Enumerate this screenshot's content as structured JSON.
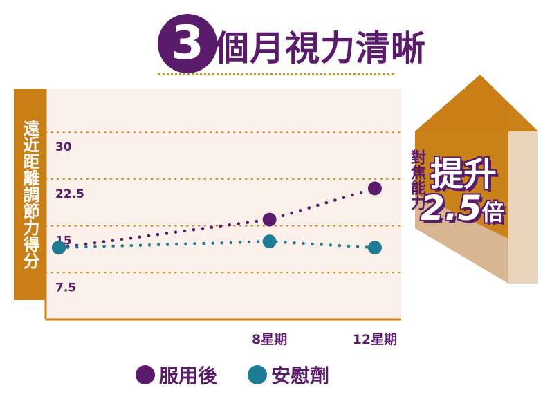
{
  "title": {
    "number": "3",
    "text": "個月視力清晰"
  },
  "colors": {
    "purple": "#5a1b6b",
    "teal": "#1f7c95",
    "orange": "#c97f15",
    "plot_background": "#fbf1ea",
    "gridline": "#c98a1a"
  },
  "callout": {
    "side_label": "對焦能力",
    "boost_word": "提升",
    "boost_number": "2.5",
    "boost_unit": "倍",
    "icon": "up-arrow-icon"
  },
  "legend": [
    {
      "label": "服用後",
      "color": "#5a1b6b"
    },
    {
      "label": "安慰劑",
      "color": "#1f7c95"
    }
  ],
  "chart_data": {
    "type": "line",
    "title": "3個月視力清晰",
    "ylabel": "遠近距離調節力得分",
    "xlabel": "",
    "x_positions": [
      0,
      8,
      12
    ],
    "categories": [
      "",
      "8星期",
      "12星期"
    ],
    "xlim": [
      -0.5,
      13
    ],
    "yticks": [
      7.5,
      15,
      22.5,
      30
    ],
    "ytick_labels": [
      "7.5",
      "15",
      "22.5",
      "30"
    ],
    "ylim": [
      0,
      37
    ],
    "grid": true,
    "legend_position": "bottom",
    "series": [
      {
        "name": "服用後",
        "color": "#5a1b6b",
        "values": [
          11.5,
          16,
          21
        ]
      },
      {
        "name": "安慰劑",
        "color": "#1f7c95",
        "values": [
          11.5,
          12.5,
          11.5
        ]
      }
    ]
  }
}
